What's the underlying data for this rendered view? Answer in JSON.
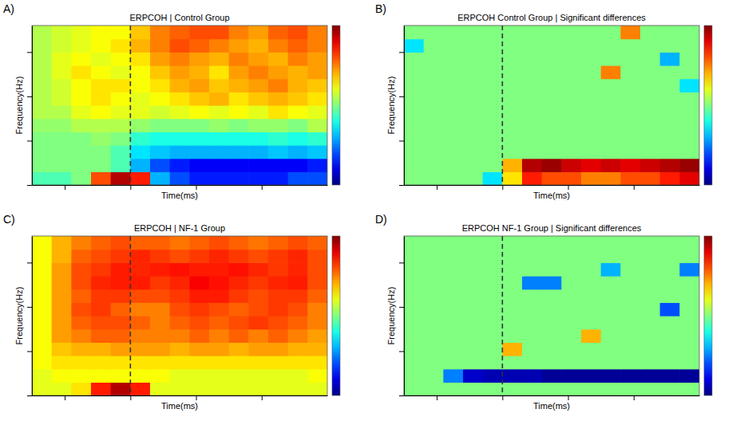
{
  "chart_data": [
    {
      "panel": "A)",
      "type": "heatmap",
      "title": "ERPCOH | Control Group",
      "x_label": "Time(ms)",
      "y_label": "Frequency(Hz)",
      "xlim": [
        -300,
        600
      ],
      "ylim": [
        0,
        36
      ],
      "xticks": [
        -200,
        0,
        200,
        400
      ],
      "yticks": [
        0,
        10,
        20,
        30
      ],
      "tick_labels": false,
      "color": "jet",
      "zlim": [
        0,
        1
      ],
      "event_time": 0,
      "x": [
        -270,
        -210,
        -150,
        -90,
        -30,
        30,
        90,
        150,
        210,
        270,
        330,
        390,
        450,
        510,
        570
      ],
      "y": [
        1.5,
        4.5,
        7.5,
        10.5,
        13.5,
        16.5,
        19.5,
        22.5,
        25.5,
        28.5,
        31.5,
        34.5
      ],
      "z": [
        [
          0.45,
          0.45,
          0.5,
          0.8,
          0.95,
          0.85,
          0.3,
          0.2,
          0.15,
          0.15,
          0.15,
          0.15,
          0.15,
          0.2,
          0.2
        ],
        [
          0.5,
          0.5,
          0.5,
          0.5,
          0.45,
          0.3,
          0.2,
          0.15,
          0.12,
          0.12,
          0.12,
          0.12,
          0.12,
          0.12,
          0.15
        ],
        [
          0.5,
          0.5,
          0.5,
          0.5,
          0.45,
          0.35,
          0.32,
          0.3,
          0.3,
          0.3,
          0.3,
          0.3,
          0.32,
          0.3,
          0.32
        ],
        [
          0.5,
          0.5,
          0.5,
          0.52,
          0.5,
          0.42,
          0.4,
          0.4,
          0.4,
          0.4,
          0.4,
          0.4,
          0.42,
          0.4,
          0.42
        ],
        [
          0.52,
          0.52,
          0.55,
          0.55,
          0.55,
          0.52,
          0.5,
          0.5,
          0.5,
          0.52,
          0.5,
          0.52,
          0.52,
          0.5,
          0.55
        ],
        [
          0.55,
          0.55,
          0.6,
          0.62,
          0.6,
          0.6,
          0.58,
          0.6,
          0.62,
          0.6,
          0.62,
          0.6,
          0.65,
          0.62,
          0.6
        ],
        [
          0.55,
          0.58,
          0.62,
          0.65,
          0.62,
          0.6,
          0.62,
          0.65,
          0.68,
          0.7,
          0.65,
          0.68,
          0.7,
          0.68,
          0.65
        ],
        [
          0.55,
          0.58,
          0.62,
          0.65,
          0.65,
          0.62,
          0.65,
          0.7,
          0.72,
          0.68,
          0.7,
          0.72,
          0.75,
          0.7,
          0.68
        ],
        [
          0.55,
          0.6,
          0.65,
          0.62,
          0.6,
          0.62,
          0.68,
          0.72,
          0.7,
          0.65,
          0.72,
          0.75,
          0.72,
          0.7,
          0.72
        ],
        [
          0.55,
          0.6,
          0.62,
          0.6,
          0.62,
          0.65,
          0.72,
          0.75,
          0.72,
          0.7,
          0.75,
          0.72,
          0.7,
          0.75,
          0.72
        ],
        [
          0.55,
          0.58,
          0.6,
          0.62,
          0.65,
          0.7,
          0.75,
          0.8,
          0.78,
          0.75,
          0.72,
          0.7,
          0.75,
          0.78,
          0.75
        ],
        [
          0.55,
          0.58,
          0.6,
          0.62,
          0.62,
          0.68,
          0.75,
          0.78,
          0.8,
          0.8,
          0.75,
          0.72,
          0.78,
          0.8,
          0.75
        ]
      ]
    },
    {
      "panel": "B)",
      "type": "heatmap",
      "title": "ERPCOH Control Group | Significant differences",
      "x_label": "Time(ms)",
      "y_label": "Frequency(Hz)",
      "xlim": [
        -300,
        600
      ],
      "ylim": [
        0,
        36
      ],
      "xticks": [
        -200,
        0,
        200,
        400
      ],
      "yticks": [
        0,
        10,
        20,
        30
      ],
      "tick_labels": false,
      "color": "jet",
      "zlim": [
        -1,
        1
      ],
      "event_time": 0,
      "x": [
        -270,
        -210,
        -150,
        -90,
        -30,
        30,
        90,
        150,
        210,
        270,
        330,
        390,
        450,
        510,
        570
      ],
      "y": [
        1.5,
        4.5,
        7.5,
        10.5,
        13.5,
        16.5,
        19.5,
        22.5,
        25.5,
        28.5,
        31.5,
        34.5
      ],
      "z": [
        [
          0,
          0,
          0,
          0,
          -0.3,
          0.3,
          0.7,
          0.6,
          0.6,
          0.5,
          0.5,
          0.6,
          0.6,
          0.7,
          0.8
        ],
        [
          0,
          0,
          0,
          0,
          0,
          0.4,
          0.9,
          0.95,
          0.85,
          0.8,
          0.85,
          0.8,
          0.85,
          0.9,
          0.95
        ],
        [
          0,
          0,
          0,
          0,
          0,
          0,
          0,
          0,
          0,
          0,
          0,
          0,
          0,
          0,
          0
        ],
        [
          0,
          0,
          0,
          0,
          0,
          0,
          0,
          0,
          0,
          0,
          0,
          0,
          0,
          0,
          0
        ],
        [
          0,
          0,
          0,
          0,
          0,
          0,
          0,
          0,
          0,
          0,
          0,
          0,
          0,
          0,
          0
        ],
        [
          0,
          0,
          0,
          0,
          0,
          0,
          0,
          0,
          0,
          0,
          0,
          0,
          0,
          0,
          0
        ],
        [
          0,
          0,
          0,
          0,
          0,
          0,
          0,
          0,
          0,
          0,
          0,
          0,
          0,
          0,
          0
        ],
        [
          0,
          0,
          0,
          0,
          0,
          0,
          0,
          0,
          0,
          0,
          0,
          0,
          0,
          0,
          -0.3
        ],
        [
          0,
          0,
          0,
          0,
          0,
          0,
          0,
          0,
          0,
          0,
          0.5,
          0,
          0,
          0,
          0
        ],
        [
          0,
          0,
          0,
          0,
          0,
          0,
          0,
          0,
          0,
          0,
          0,
          0,
          0,
          -0.4,
          0
        ],
        [
          -0.3,
          0,
          0,
          0,
          0,
          0,
          0,
          0,
          0,
          0,
          0,
          0,
          0,
          0,
          0
        ],
        [
          0,
          0,
          0,
          0,
          0,
          0,
          0,
          0,
          0,
          0,
          0,
          0.5,
          0,
          0,
          0
        ]
      ]
    },
    {
      "panel": "C)",
      "type": "heatmap",
      "title": "ERPCOH | NF-1 Group",
      "x_label": "Time(ms)",
      "y_label": "Frequency(Hz)",
      "xlim": [
        -300,
        600
      ],
      "ylim": [
        0,
        36
      ],
      "xticks": [
        -200,
        0,
        200,
        400
      ],
      "yticks": [
        0,
        10,
        20,
        30
      ],
      "tick_labels": false,
      "color": "jet",
      "zlim": [
        0,
        1
      ],
      "event_time": 0,
      "x": [
        -270,
        -210,
        -150,
        -90,
        -30,
        30,
        90,
        150,
        210,
        270,
        330,
        390,
        450,
        510,
        570
      ],
      "y": [
        1.5,
        4.5,
        7.5,
        10.5,
        13.5,
        16.5,
        19.5,
        22.5,
        25.5,
        28.5,
        31.5,
        34.5
      ],
      "z": [
        [
          0.6,
          0.6,
          0.65,
          0.85,
          0.95,
          0.85,
          0.6,
          0.6,
          0.6,
          0.6,
          0.6,
          0.6,
          0.6,
          0.6,
          0.6
        ],
        [
          0.6,
          0.62,
          0.62,
          0.62,
          0.62,
          0.62,
          0.62,
          0.6,
          0.6,
          0.6,
          0.6,
          0.6,
          0.6,
          0.6,
          0.62
        ],
        [
          0.62,
          0.65,
          0.65,
          0.65,
          0.65,
          0.65,
          0.65,
          0.65,
          0.65,
          0.65,
          0.65,
          0.65,
          0.65,
          0.65,
          0.65
        ],
        [
          0.62,
          0.68,
          0.7,
          0.7,
          0.72,
          0.72,
          0.72,
          0.7,
          0.72,
          0.72,
          0.7,
          0.72,
          0.72,
          0.7,
          0.7
        ],
        [
          0.62,
          0.72,
          0.75,
          0.78,
          0.78,
          0.75,
          0.75,
          0.75,
          0.78,
          0.75,
          0.78,
          0.75,
          0.78,
          0.75,
          0.72
        ],
        [
          0.62,
          0.72,
          0.78,
          0.8,
          0.8,
          0.78,
          0.75,
          0.78,
          0.8,
          0.78,
          0.8,
          0.82,
          0.8,
          0.78,
          0.75
        ],
        [
          0.62,
          0.72,
          0.8,
          0.82,
          0.78,
          0.75,
          0.75,
          0.8,
          0.82,
          0.8,
          0.78,
          0.8,
          0.82,
          0.8,
          0.75
        ],
        [
          0.62,
          0.72,
          0.78,
          0.82,
          0.82,
          0.8,
          0.8,
          0.82,
          0.85,
          0.85,
          0.82,
          0.8,
          0.82,
          0.82,
          0.78
        ],
        [
          0.62,
          0.72,
          0.8,
          0.84,
          0.85,
          0.85,
          0.82,
          0.84,
          0.88,
          0.86,
          0.84,
          0.82,
          0.84,
          0.85,
          0.8
        ],
        [
          0.62,
          0.72,
          0.8,
          0.82,
          0.85,
          0.84,
          0.85,
          0.86,
          0.85,
          0.85,
          0.86,
          0.84,
          0.82,
          0.84,
          0.8
        ],
        [
          0.62,
          0.7,
          0.78,
          0.8,
          0.82,
          0.84,
          0.82,
          0.8,
          0.82,
          0.84,
          0.82,
          0.8,
          0.82,
          0.84,
          0.8
        ],
        [
          0.62,
          0.7,
          0.75,
          0.78,
          0.8,
          0.78,
          0.78,
          0.76,
          0.78,
          0.8,
          0.78,
          0.76,
          0.78,
          0.8,
          0.78
        ]
      ]
    },
    {
      "panel": "D)",
      "type": "heatmap",
      "title": "ERPCOH NF-1 Group | Significant differences",
      "x_label": "Time(ms)",
      "y_label": "Frequency(Hz)",
      "xlim": [
        -300,
        600
      ],
      "ylim": [
        0,
        36
      ],
      "xticks": [
        -200,
        0,
        200,
        400
      ],
      "yticks": [
        0,
        10,
        20,
        30
      ],
      "tick_labels": false,
      "color": "jet",
      "zlim": [
        -1,
        1
      ],
      "event_time": 0,
      "x": [
        -270,
        -210,
        -150,
        -90,
        -30,
        30,
        90,
        150,
        210,
        270,
        330,
        390,
        450,
        510,
        570
      ],
      "y": [
        1.5,
        4.5,
        7.5,
        10.5,
        13.5,
        16.5,
        19.5,
        22.5,
        25.5,
        28.5,
        31.5,
        34.5
      ],
      "z": [
        [
          0,
          0,
          0,
          0,
          0,
          0,
          0,
          0,
          0,
          0,
          0,
          0,
          0,
          0,
          0
        ],
        [
          0,
          0,
          -0.5,
          -0.85,
          -0.9,
          -0.9,
          -0.9,
          -0.95,
          -0.95,
          -0.95,
          -0.95,
          -0.95,
          -0.95,
          -0.95,
          -0.95
        ],
        [
          0,
          0,
          0,
          0,
          0,
          0,
          0,
          0,
          0,
          0,
          0,
          0,
          0,
          0,
          0
        ],
        [
          0,
          0,
          0,
          0,
          0,
          0.4,
          0,
          0,
          0,
          0,
          0,
          0,
          0,
          0,
          0
        ],
        [
          0,
          0,
          0,
          0,
          0,
          0,
          0,
          0,
          0,
          0.4,
          0,
          0,
          0,
          0,
          0
        ],
        [
          0,
          0,
          0,
          0,
          0,
          0,
          0,
          0,
          0,
          0,
          0,
          0,
          0,
          0,
          0
        ],
        [
          0,
          0,
          0,
          0,
          0,
          0,
          0,
          0,
          0,
          0,
          0,
          0,
          0,
          -0.6,
          0
        ],
        [
          0,
          0,
          0,
          0,
          0,
          0,
          0,
          0,
          0,
          0,
          0,
          0,
          0,
          0,
          0
        ],
        [
          0,
          0,
          0,
          0,
          0,
          0,
          -0.5,
          -0.5,
          0,
          0,
          0,
          0,
          0,
          0,
          0
        ],
        [
          0,
          0,
          0,
          0,
          0,
          0,
          0,
          0,
          0,
          0,
          -0.4,
          0,
          0,
          0,
          -0.5
        ],
        [
          0,
          0,
          0,
          0,
          0,
          0,
          0,
          0,
          0,
          0,
          0,
          0,
          0,
          0,
          0
        ],
        [
          0,
          0,
          0,
          0,
          0,
          0,
          0,
          0,
          0,
          0,
          0,
          0,
          0,
          0,
          0
        ]
      ]
    }
  ]
}
